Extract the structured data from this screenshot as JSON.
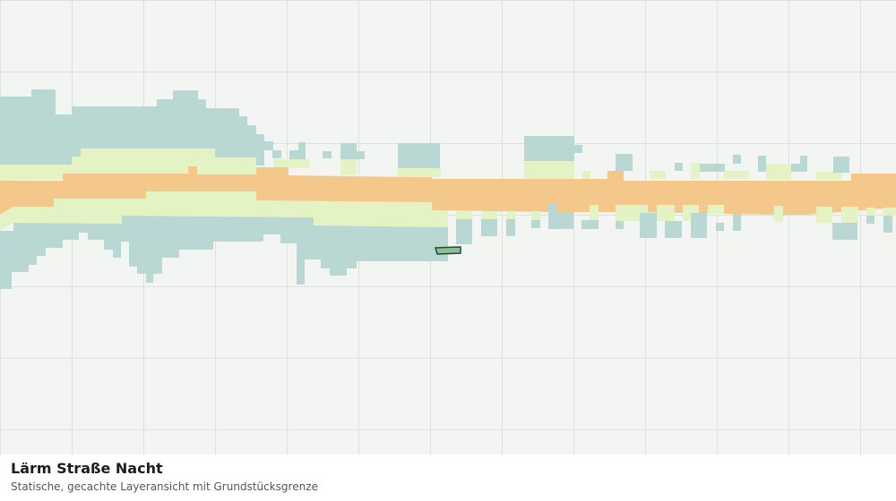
{
  "legend": {
    "title": "Lärm Straße Nacht",
    "subtitle": "Statische, gecachte Layeransicht mit Grundstücksgrenze"
  }
}
